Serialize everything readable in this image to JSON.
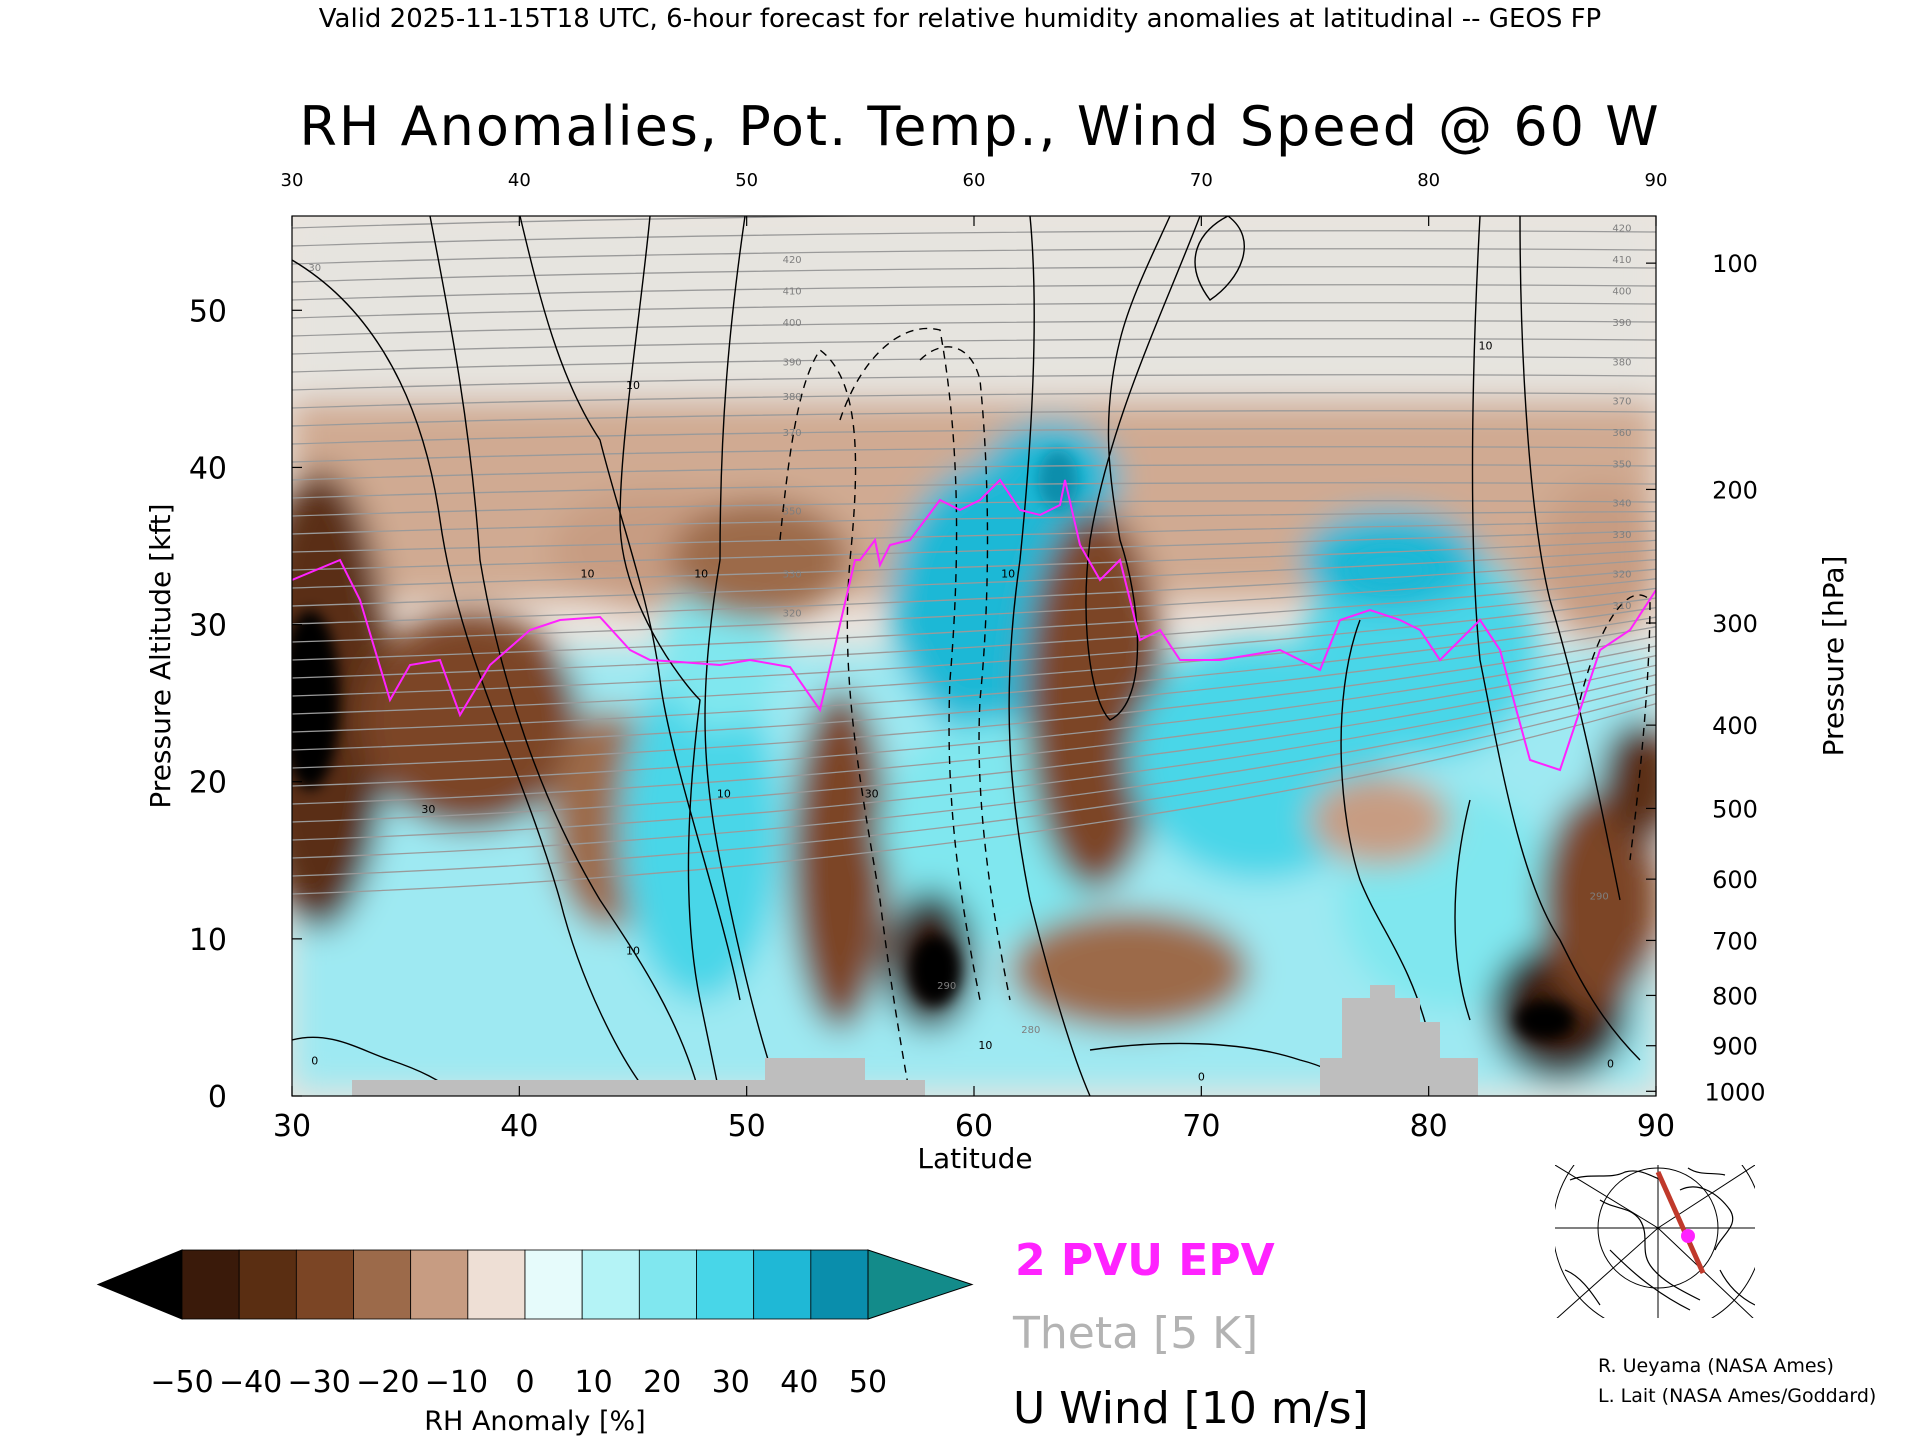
{
  "header": "Valid 2025-11-15T18 UTC, 6-hour forecast for relative humidity anomalies at latitudinal -- GEOS FP",
  "title": "RH Anomalies, Pot. Temp., Wind Speed @ 60 W",
  "legend": {
    "epv": "2 PVU EPV",
    "epv_color": "#ff22ff",
    "theta": "Theta [5 K]",
    "theta_color": "#b3b3b3",
    "uwind": "U Wind [10 m/s]",
    "uwind_color": "#000000"
  },
  "credits": [
    "R. Ueyama (NASA Ames)",
    "L. Lait (NASA Ames/Goddard)"
  ],
  "chart_data": {
    "type": "heatmap",
    "xlabel": "Latitude",
    "ylabel": "Pressure Altitude [kft]",
    "ylabel_right": "Pressure [hPa]",
    "xlim": [
      30,
      90
    ],
    "ylim": [
      0,
      56
    ],
    "x_ticks": [
      "30",
      "40",
      "50",
      "60",
      "70",
      "80",
      "90"
    ],
    "y_ticks": [
      "0",
      "10",
      "20",
      "30",
      "40",
      "50"
    ],
    "pressure_ticks": [
      {
        "label": "100",
        "kft": 53.0
      },
      {
        "label": "200",
        "kft": 38.6
      },
      {
        "label": "300",
        "kft": 30.1
      },
      {
        "label": "400",
        "kft": 23.6
      },
      {
        "label": "500",
        "kft": 18.3
      },
      {
        "label": "600",
        "kft": 13.8
      },
      {
        "label": "700",
        "kft": 9.9
      },
      {
        "label": "800",
        "kft": 6.4
      },
      {
        "label": "900",
        "kft": 3.2
      },
      {
        "label": "1000",
        "kft": 0.3
      }
    ],
    "colorbar": {
      "label": "RH Anomaly [%]",
      "ticks": [
        "−50",
        "−40",
        "−30",
        "−20",
        "−10",
        "0",
        "10",
        "20",
        "30",
        "40",
        "50"
      ],
      "colors": [
        "#000000",
        "#3a1a0a",
        "#5a2e12",
        "#7b4525",
        "#9c6a4a",
        "#c79c82",
        "#eedfd5",
        "#e6fbfb",
        "#b4f3f6",
        "#80e7ef",
        "#48d6e8",
        "#1fb8d6",
        "#0a8eac",
        "#138b8a"
      ]
    },
    "theta_labels": [
      {
        "lat": 31.0,
        "kft": 52.5,
        "text": "30"
      },
      {
        "lat": 52.0,
        "kft": 53.0,
        "text": "420"
      },
      {
        "lat": 52.0,
        "kft": 51.0,
        "text": "410"
      },
      {
        "lat": 52.0,
        "kft": 49.0,
        "text": "400"
      },
      {
        "lat": 52.0,
        "kft": 46.5,
        "text": "390"
      },
      {
        "lat": 52.0,
        "kft": 44.3,
        "text": "380"
      },
      {
        "lat": 52.0,
        "kft": 42.0,
        "text": "370"
      },
      {
        "lat": 52.0,
        "kft": 37.0,
        "text": "350"
      },
      {
        "lat": 52.0,
        "kft": 33.0,
        "text": "330"
      },
      {
        "lat": 52.0,
        "kft": 30.5,
        "text": "320"
      },
      {
        "lat": 88.5,
        "kft": 55.0,
        "text": "420"
      },
      {
        "lat": 88.5,
        "kft": 53.0,
        "text": "410"
      },
      {
        "lat": 88.5,
        "kft": 51.0,
        "text": "400"
      },
      {
        "lat": 88.5,
        "kft": 49.0,
        "text": "390"
      },
      {
        "lat": 88.5,
        "kft": 46.5,
        "text": "380"
      },
      {
        "lat": 88.5,
        "kft": 44.0,
        "text": "370"
      },
      {
        "lat": 88.5,
        "kft": 42.0,
        "text": "360"
      },
      {
        "lat": 88.5,
        "kft": 40.0,
        "text": "350"
      },
      {
        "lat": 88.5,
        "kft": 37.5,
        "text": "340"
      },
      {
        "lat": 88.5,
        "kft": 35.5,
        "text": "330"
      },
      {
        "lat": 88.5,
        "kft": 33.0,
        "text": "320"
      },
      {
        "lat": 88.5,
        "kft": 31.0,
        "text": "310"
      },
      {
        "lat": 87.5,
        "kft": 12.5,
        "text": "290"
      },
      {
        "lat": 58.8,
        "kft": 6.8,
        "text": "290"
      },
      {
        "lat": 62.5,
        "kft": 4.0,
        "text": "280"
      }
    ],
    "wind_labels": [
      {
        "lat": 45.0,
        "kft": 45.0,
        "text": "10"
      },
      {
        "lat": 43.0,
        "kft": 33.0,
        "text": "10"
      },
      {
        "lat": 48.0,
        "kft": 33.0,
        "text": "10"
      },
      {
        "lat": 36.0,
        "kft": 18.0,
        "text": "30"
      },
      {
        "lat": 49.0,
        "kft": 19.0,
        "text": "10"
      },
      {
        "lat": 45.0,
        "kft": 9.0,
        "text": "10"
      },
      {
        "lat": 55.5,
        "kft": 19.0,
        "text": "30"
      },
      {
        "lat": 61.5,
        "kft": 33.0,
        "text": "10"
      },
      {
        "lat": 60.5,
        "kft": 3.0,
        "text": "10"
      },
      {
        "lat": 82.5,
        "kft": 47.5,
        "text": "10"
      },
      {
        "lat": 31.0,
        "kft": 2.0,
        "text": "0"
      },
      {
        "lat": 70.0,
        "kft": 1.0,
        "text": "0"
      },
      {
        "lat": 88.0,
        "kft": 1.8,
        "text": "0"
      }
    ]
  }
}
